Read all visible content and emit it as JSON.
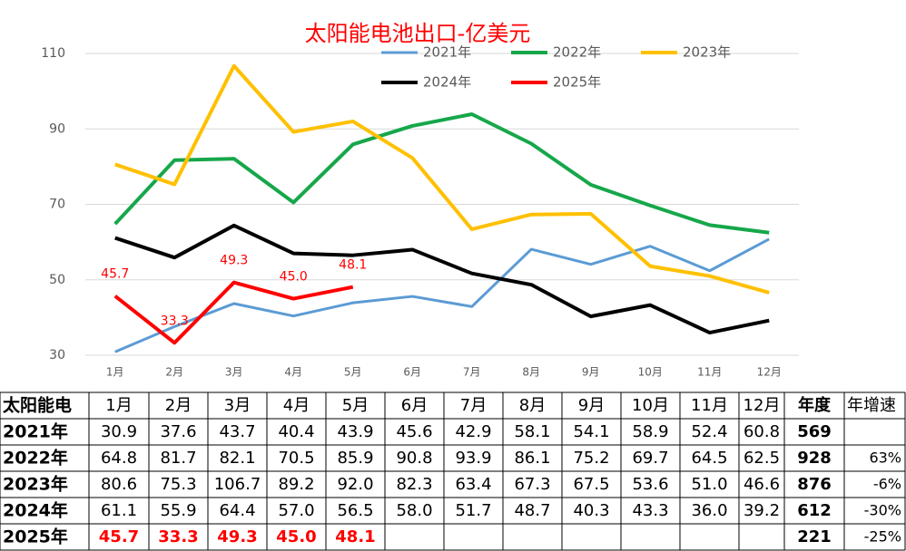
{
  "chart_data": {
    "type": "line",
    "title": "太阳能电池出口-亿美元",
    "categories": [
      "1月",
      "2月",
      "3月",
      "4月",
      "5月",
      "6月",
      "7月",
      "8月",
      "9月",
      "10月",
      "11月",
      "12月"
    ],
    "ylim": [
      30,
      110
    ],
    "yticks": [
      30,
      50,
      70,
      90,
      110
    ],
    "grid": true,
    "legend": "top",
    "series": [
      {
        "name": "2021年",
        "color": "#5b9bd5",
        "values": [
          30.9,
          37.6,
          43.7,
          40.4,
          43.9,
          45.6,
          42.9,
          58.1,
          54.1,
          58.9,
          52.4,
          60.8
        ]
      },
      {
        "name": "2022年",
        "color": "#16a74a",
        "values": [
          64.8,
          81.7,
          82.1,
          70.5,
          85.9,
          90.8,
          93.9,
          86.1,
          75.2,
          69.7,
          64.5,
          62.5
        ]
      },
      {
        "name": "2023年",
        "color": "#ffc000",
        "values": [
          80.6,
          75.3,
          106.7,
          89.2,
          92.0,
          82.3,
          63.4,
          67.3,
          67.5,
          53.6,
          51.0,
          46.6
        ]
      },
      {
        "name": "2024年",
        "color": "#000000",
        "values": [
          61.1,
          55.9,
          64.4,
          57.0,
          56.5,
          58.0,
          51.7,
          48.7,
          40.3,
          43.3,
          36.0,
          39.2
        ]
      },
      {
        "name": "2025年",
        "color": "#ff0000",
        "values": [
          45.7,
          33.3,
          49.3,
          45.0,
          48.1,
          null,
          null,
          null,
          null,
          null,
          null,
          null
        ],
        "value_labels": [
          "45.7",
          "33.3",
          "49.3",
          "45.0",
          "48.1",
          null,
          null,
          null,
          null,
          null,
          null,
          null
        ]
      }
    ]
  },
  "table": {
    "header": [
      "太阳能电",
      "1月",
      "2月",
      "3月",
      "4月",
      "5月",
      "6月",
      "7月",
      "8月",
      "9月",
      "10月",
      "11月",
      "12月",
      "年度",
      "年增速"
    ],
    "rows": [
      [
        "2021年",
        "30.9",
        "37.6",
        "43.7",
        "40.4",
        "43.9",
        "45.6",
        "42.9",
        "58.1",
        "54.1",
        "58.9",
        "52.4",
        "60.8",
        "569",
        null
      ],
      [
        "2022年",
        "64.8",
        "81.7",
        "82.1",
        "70.5",
        "85.9",
        "90.8",
        "93.9",
        "86.1",
        "75.2",
        "69.7",
        "64.5",
        "62.5",
        "928",
        "63%"
      ],
      [
        "2023年",
        "80.6",
        "75.3",
        "106.7",
        "89.2",
        "92.0",
        "82.3",
        "63.4",
        "67.3",
        "67.5",
        "53.6",
        "51.0",
        "46.6",
        "876",
        "-6%"
      ],
      [
        "2024年",
        "61.1",
        "55.9",
        "64.4",
        "57.0",
        "56.5",
        "58.0",
        "51.7",
        "48.7",
        "40.3",
        "43.3",
        "36.0",
        "39.2",
        "612",
        "-30%"
      ],
      [
        "2025年",
        "45.7",
        "33.3",
        "49.3",
        "45.0",
        "48.1",
        null,
        null,
        null,
        null,
        null,
        null,
        null,
        "221",
        "-25%"
      ]
    ]
  }
}
